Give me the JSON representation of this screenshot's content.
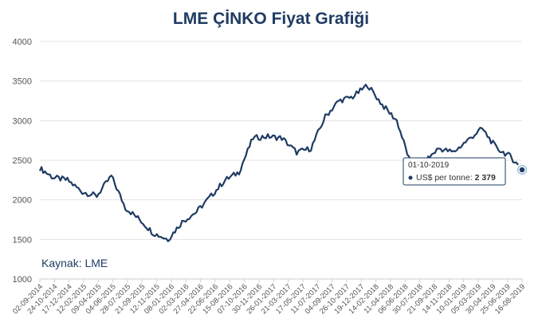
{
  "chart_data": {
    "type": "line",
    "title": "LME ÇİNKO Fiyat Grafiği",
    "source": "Kaynak: LME",
    "ylim": [
      1000,
      4000
    ],
    "yticks": [
      1000,
      1500,
      2000,
      2500,
      3000,
      3500,
      4000
    ],
    "grid": true,
    "x_tick_labels": [
      "02-09-2014",
      "24-10-2014",
      "17-12-2014",
      "12-02-2015",
      "09-04-2015",
      "04-06-2015",
      "28-07-2015",
      "21-09-2015",
      "12-11-2015",
      "08-01-2016",
      "02-03-2016",
      "27-04-2016",
      "22-06-2016",
      "15-08-2016",
      "07-10-2016",
      "30-11-2016",
      "26-01-2017",
      "21-03-2017",
      "17-05-2017",
      "11-07-2017",
      "04-09-2017",
      "26-10-2017",
      "19-12-2017",
      "14-02-2018",
      "11-04-2018",
      "06-06-2018",
      "30-07-2018",
      "21-09-2018",
      "14-11-2018",
      "10-01-2019",
      "05-03-2019",
      "30-04-2019",
      "25-06-2019",
      "16-08-2019"
    ],
    "series": [
      {
        "name": "US$ per tonne",
        "color": "#1f3b63",
        "x": [
          "02-09-2014",
          "24-10-2014",
          "17-12-2014",
          "12-02-2015",
          "09-04-2015",
          "04-06-2015",
          "28-07-2015",
          "21-09-2015",
          "12-11-2015",
          "08-01-2016",
          "02-03-2016",
          "27-04-2016",
          "22-06-2016",
          "15-08-2016",
          "07-10-2016",
          "30-11-2016",
          "26-01-2017",
          "21-03-2017",
          "17-05-2017",
          "11-07-2017",
          "04-09-2017",
          "26-10-2017",
          "19-12-2017",
          "14-02-2018",
          "11-04-2018",
          "06-06-2018",
          "30-07-2018",
          "21-09-2018",
          "14-11-2018",
          "10-01-2019",
          "05-03-2019",
          "30-04-2019",
          "25-06-2019",
          "16-08-2019",
          "01-10-2019"
        ],
        "values": [
          2400,
          2280,
          2250,
          2100,
          2050,
          2300,
          1900,
          1750,
          1580,
          1500,
          1720,
          1850,
          2050,
          2250,
          2350,
          2780,
          2800,
          2780,
          2600,
          2650,
          3050,
          3250,
          3300,
          3450,
          3200,
          3000,
          2450,
          2480,
          2650,
          2600,
          2750,
          2900,
          2650,
          2550,
          2379
        ]
      }
    ],
    "tooltip": {
      "date": "01-10-2019",
      "series_label": "US$ per tonne:",
      "value_text": "2 379",
      "value": 2379
    }
  }
}
